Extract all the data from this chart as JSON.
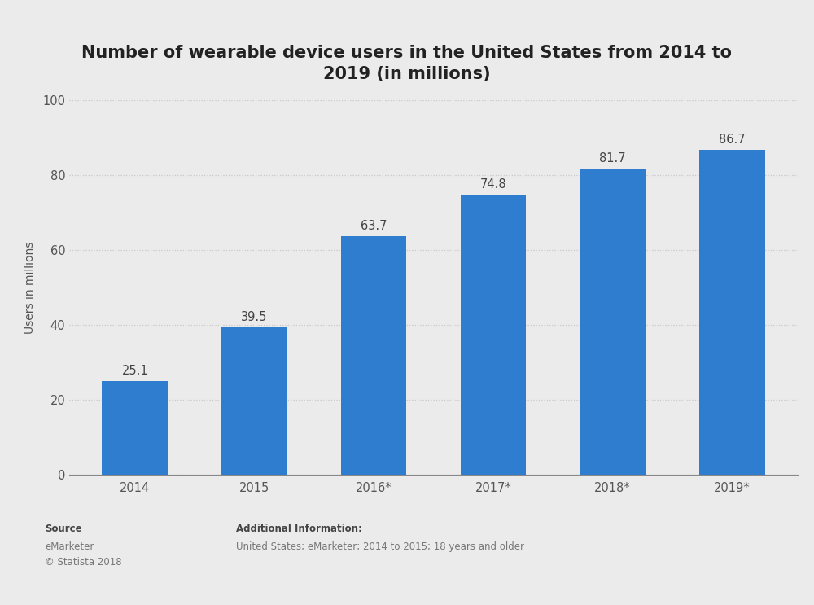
{
  "categories": [
    "2014",
    "2015",
    "2016*",
    "2017*",
    "2018*",
    "2019*"
  ],
  "values": [
    25.1,
    39.5,
    63.7,
    74.8,
    81.7,
    86.7
  ],
  "bar_color": "#2e7dce",
  "title_line1": "Number of wearable device users in the United States from 2014 to",
  "title_line2": "2019 (in millions)",
  "ylabel": "Users in millions",
  "ylim": [
    0,
    100
  ],
  "yticks": [
    0,
    20,
    40,
    60,
    80,
    100
  ],
  "chart_bg_color": "#ebebeb",
  "footer_bg_color": "#e0e0e0",
  "bar_color_hex": "#2e7dce",
  "grid_color": "#c8c8c8",
  "title_fontsize": 15,
  "label_fontsize": 10,
  "tick_fontsize": 10.5,
  "value_fontsize": 10.5
}
